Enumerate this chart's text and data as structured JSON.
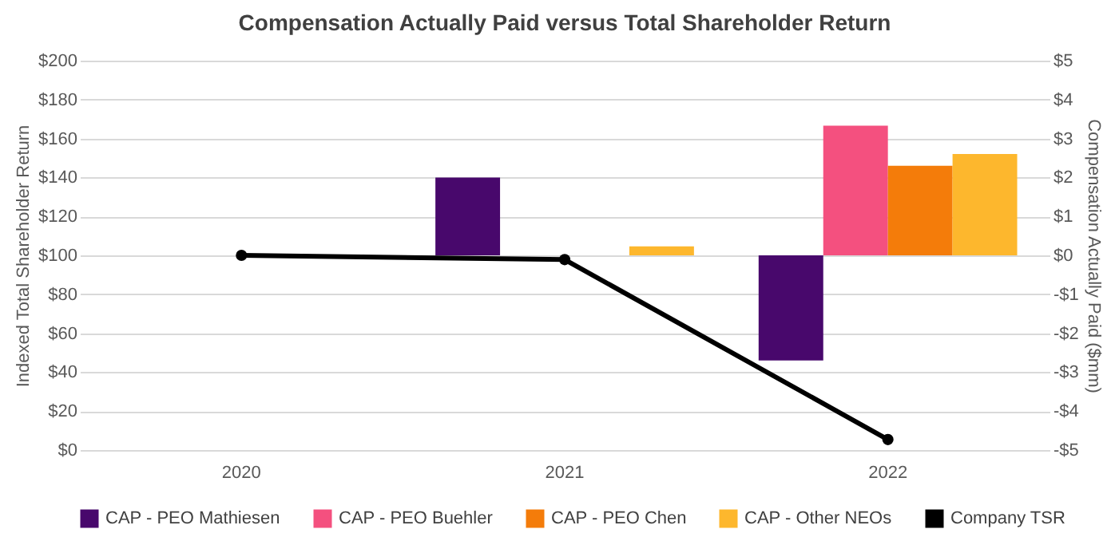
{
  "chart_data": {
    "type": "bar",
    "title": "Compensation Actually Paid versus Total Shareholder Return",
    "categories": [
      "2020",
      "2021",
      "2022"
    ],
    "series": [
      {
        "name": "CAP - PEO Mathiesen",
        "color": "#48086c",
        "axis": "y2",
        "values": [
          null,
          2.0,
          -2.7
        ]
      },
      {
        "name": "CAP - PEO Buehler",
        "color": "#f4507f",
        "axis": "y2",
        "values": [
          null,
          null,
          3.33
        ]
      },
      {
        "name": "CAP - PEO Chen",
        "color": "#f47c0a",
        "axis": "y2",
        "values": [
          null,
          null,
          2.3
        ]
      },
      {
        "name": "CAP - Other NEOs",
        "color": "#fdb72d",
        "axis": "y2",
        "values": [
          null,
          0.23,
          2.6
        ]
      },
      {
        "name": "Company TSR",
        "type": "line",
        "color": "#000000",
        "axis": "y",
        "marker": "circle",
        "line_style": "solid",
        "values": [
          100,
          97.8,
          5.4
        ]
      }
    ],
    "ylabel": "Indexed Total Shareholder Return",
    "y2label": "Compensation Actually Paid ($mm)",
    "ylim": [
      0,
      200
    ],
    "yticks": [
      {
        "value": 0,
        "label": "$0"
      },
      {
        "value": 20,
        "label": "$20"
      },
      {
        "value": 40,
        "label": "$40"
      },
      {
        "value": 60,
        "label": "$60"
      },
      {
        "value": 80,
        "label": "$80"
      },
      {
        "value": 100,
        "label": "$100"
      },
      {
        "value": 120,
        "label": "$120"
      },
      {
        "value": 140,
        "label": "$140"
      },
      {
        "value": 160,
        "label": "$160"
      },
      {
        "value": 180,
        "label": "$180"
      },
      {
        "value": 200,
        "label": "$200"
      }
    ],
    "y2lim": [
      -5,
      5
    ],
    "y2ticks": [
      {
        "value": -5,
        "label": "-$5"
      },
      {
        "value": -4,
        "label": "-$4"
      },
      {
        "value": -3,
        "label": "-$3"
      },
      {
        "value": -2,
        "label": "-$2"
      },
      {
        "value": -1,
        "label": "-$1"
      },
      {
        "value": 0,
        "label": "$0"
      },
      {
        "value": 1,
        "label": "$1"
      },
      {
        "value": 2,
        "label": "$2"
      },
      {
        "value": 3,
        "label": "$3"
      },
      {
        "value": 4,
        "label": "$4"
      },
      {
        "value": 5,
        "label": "$5"
      }
    ],
    "grid": "y",
    "legend": "bottom"
  }
}
